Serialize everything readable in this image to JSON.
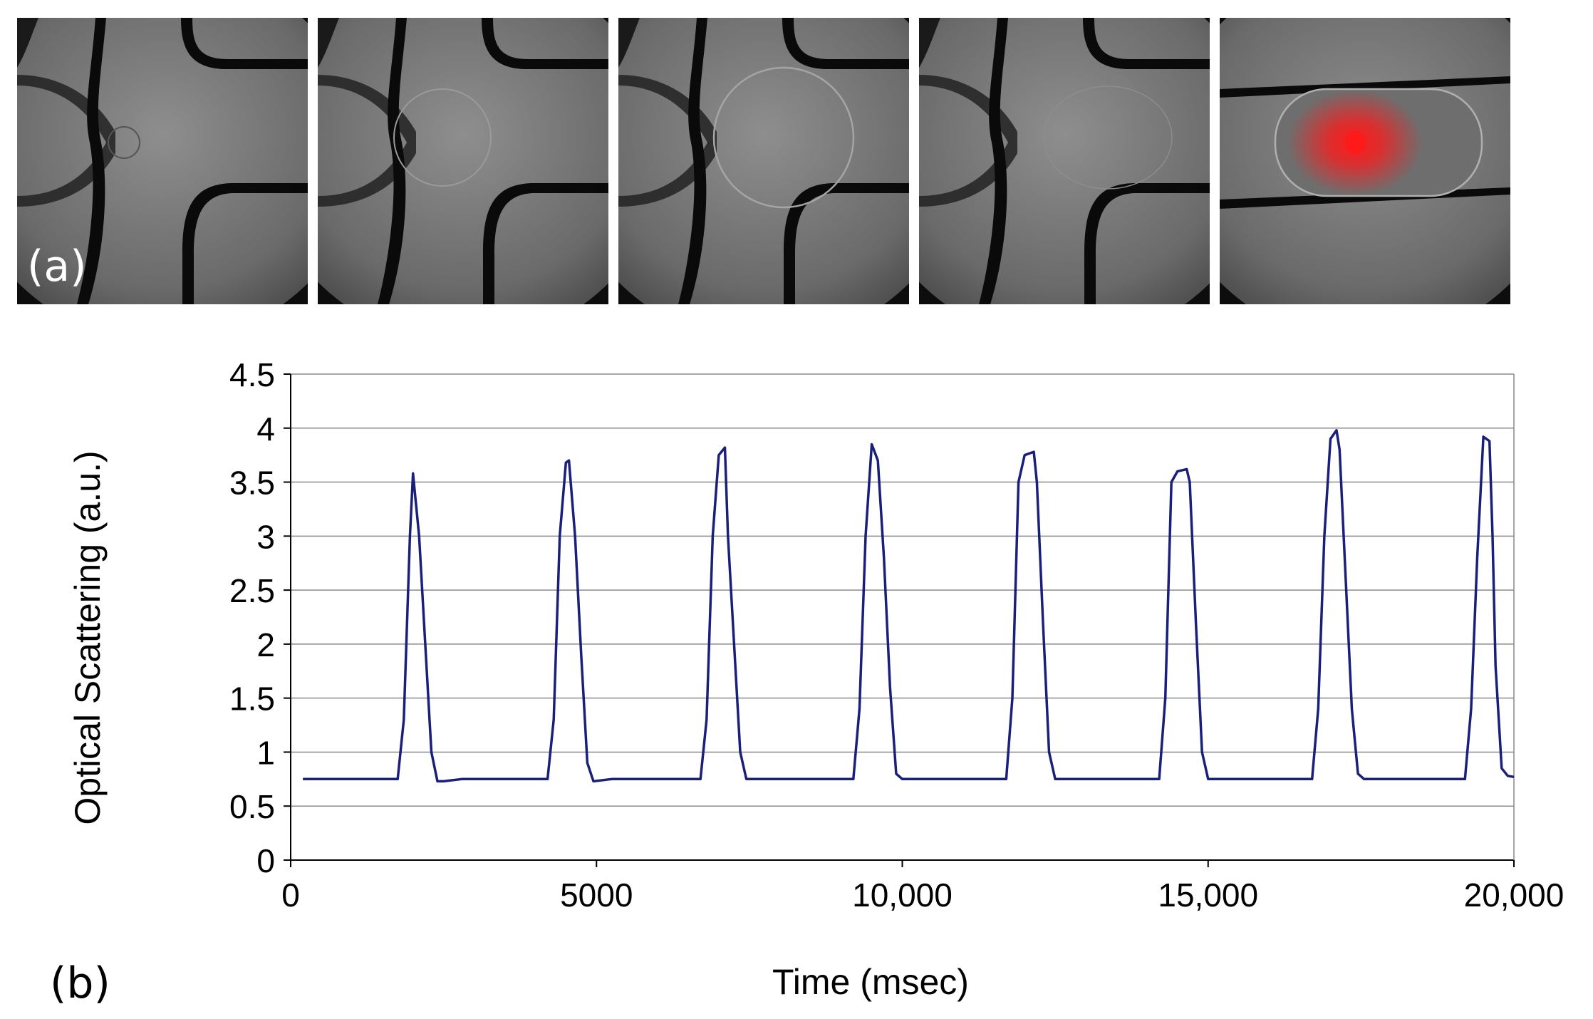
{
  "panels_a": {
    "label": "(a)",
    "frames": [
      {
        "name": "droplet-frame-1",
        "phase": "droplet-forming-small"
      },
      {
        "name": "droplet-frame-2",
        "phase": "droplet-growing"
      },
      {
        "name": "droplet-frame-3",
        "phase": "droplet-large"
      },
      {
        "name": "droplet-frame-4",
        "phase": "droplet-released"
      },
      {
        "name": "droplet-frame-5",
        "phase": "droplet-laser-detection"
      }
    ],
    "laser_color": "#ff1a1a"
  },
  "panel_b_label": "(b)",
  "chart_data": {
    "type": "line",
    "title": "",
    "xlabel": "Time (msec)",
    "ylabel": "Optical Scattering (a.u.)",
    "xlim": [
      0,
      20000
    ],
    "ylim": [
      0,
      4.5
    ],
    "x_ticks": [
      0,
      5000,
      10000,
      15000,
      20000
    ],
    "x_tick_labels": [
      "0",
      "5000",
      "10,000",
      "15,000",
      "20,000"
    ],
    "y_ticks": [
      0,
      0.5,
      1,
      1.5,
      2,
      2.5,
      3,
      3.5,
      4,
      4.5
    ],
    "y_tick_labels": [
      "0",
      "0.5",
      "1",
      "1.5",
      "2",
      "2.5",
      "3",
      "3.5",
      "4",
      "4.5"
    ],
    "grid": "horizontal",
    "line_color": "#1a1f7a",
    "series": [
      {
        "name": "scattering",
        "x": [
          200,
          1750,
          1850,
          1950,
          2000,
          2100,
          2200,
          2300,
          2400,
          2500,
          2800,
          4200,
          4300,
          4400,
          4500,
          4550,
          4650,
          4750,
          4850,
          4950,
          5250,
          6700,
          6800,
          6900,
          7000,
          7100,
          7150,
          7250,
          7350,
          7450,
          7550,
          7800,
          9200,
          9300,
          9400,
          9500,
          9600,
          9700,
          9800,
          9900,
          10000,
          10300,
          11700,
          11800,
          11900,
          12000,
          12150,
          12200,
          12300,
          12400,
          12500,
          12800,
          14200,
          14300,
          14400,
          14500,
          14650,
          14700,
          14800,
          14900,
          15000,
          15300,
          16700,
          16800,
          16900,
          17000,
          17100,
          17150,
          17250,
          17350,
          17450,
          17550,
          17800,
          19200,
          19300,
          19400,
          19500,
          19600,
          19650,
          19700,
          19800,
          19900,
          20000
        ],
        "y": [
          0.75,
          0.75,
          1.3,
          3.0,
          3.58,
          3.0,
          2.0,
          1.0,
          0.73,
          0.73,
          0.75,
          0.75,
          1.3,
          3.0,
          3.68,
          3.7,
          3.0,
          1.9,
          0.9,
          0.73,
          0.75,
          0.75,
          1.3,
          3.0,
          3.75,
          3.82,
          3.0,
          2.0,
          1.0,
          0.75,
          0.75,
          0.75,
          0.75,
          1.4,
          3.0,
          3.85,
          3.7,
          2.8,
          1.6,
          0.8,
          0.75,
          0.75,
          0.75,
          1.5,
          3.5,
          3.75,
          3.78,
          3.5,
          2.2,
          1.0,
          0.75,
          0.75,
          0.75,
          1.5,
          3.5,
          3.6,
          3.62,
          3.5,
          2.2,
          1.0,
          0.75,
          0.75,
          0.75,
          1.4,
          3.0,
          3.9,
          3.98,
          3.8,
          2.6,
          1.4,
          0.8,
          0.75,
          0.75,
          0.75,
          1.4,
          2.8,
          3.92,
          3.88,
          3.0,
          1.8,
          0.85,
          0.78,
          0.77
        ]
      }
    ]
  }
}
